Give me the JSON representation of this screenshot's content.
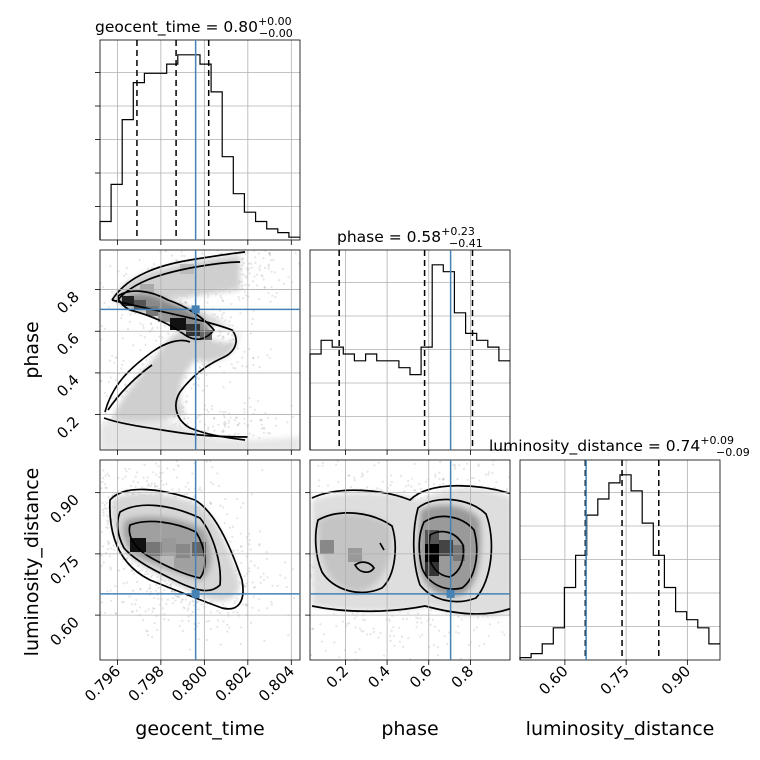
{
  "chart_data": {
    "type": "corner",
    "parameters": [
      "geocent_time",
      "phase",
      "luminosity_distance"
    ],
    "truths": {
      "geocent_time": 0.7996,
      "phase": 0.705,
      "luminosity_distance": 0.652
    },
    "ranges": {
      "geocent_time": [
        0.7952,
        0.8044
      ],
      "phase": [
        0.03,
        0.99
      ],
      "luminosity_distance": [
        0.49,
        0.98
      ]
    },
    "ticks": {
      "geocent_time": [
        0.796,
        0.798,
        0.8,
        0.802,
        0.804
      ],
      "phase": [
        0.2,
        0.4,
        0.6,
        0.8
      ],
      "luminosity_distance": [
        0.6,
        0.75,
        0.9
      ]
    },
    "tick_labels": {
      "geocent_time": [
        "0.796",
        "0.798",
        "0.800",
        "0.802",
        "0.804"
      ],
      "phase": [
        "0.2",
        "0.4",
        "0.6",
        "0.8"
      ],
      "luminosity_distance": [
        "0.60",
        "0.75",
        "0.90"
      ]
    },
    "titles": [
      {
        "param": "geocent_time",
        "label": "geocent_time = 0.80",
        "plus": "+0.00",
        "minus": "−0.00"
      },
      {
        "param": "phase",
        "label": "phase = 0.58",
        "plus": "+0.23",
        "minus": "−0.41"
      },
      {
        "param": "luminosity_distance",
        "label": "luminosity_distance = 0.74",
        "plus": "+0.09",
        "minus": "−0.09"
      }
    ],
    "quantiles": {
      "geocent_time": [
        0.7969,
        0.7987,
        0.8002
      ],
      "phase": [
        0.17,
        0.58,
        0.81
      ],
      "luminosity_distance": [
        0.65,
        0.74,
        0.83
      ]
    },
    "histograms": {
      "geocent_time": [
        2,
        6,
        13,
        17,
        18,
        18,
        19,
        20,
        20,
        19,
        16,
        9,
        5,
        3,
        2,
        1.2,
        0.8,
        0.3
      ],
      "phase": [
        14,
        16,
        15,
        14,
        13,
        14,
        13,
        13,
        12,
        11,
        15,
        27,
        26,
        20,
        17,
        16,
        15,
        13
      ],
      "luminosity_distance": [
        0.3,
        0.8,
        2,
        4,
        9,
        13,
        18,
        20,
        22,
        23,
        21,
        17,
        13,
        9,
        6,
        5,
        4,
        2
      ]
    },
    "xlabels": [
      "geocent_time",
      "phase",
      "luminosity_distance"
    ],
    "ylabels": [
      "phase",
      "luminosity_distance"
    ]
  }
}
